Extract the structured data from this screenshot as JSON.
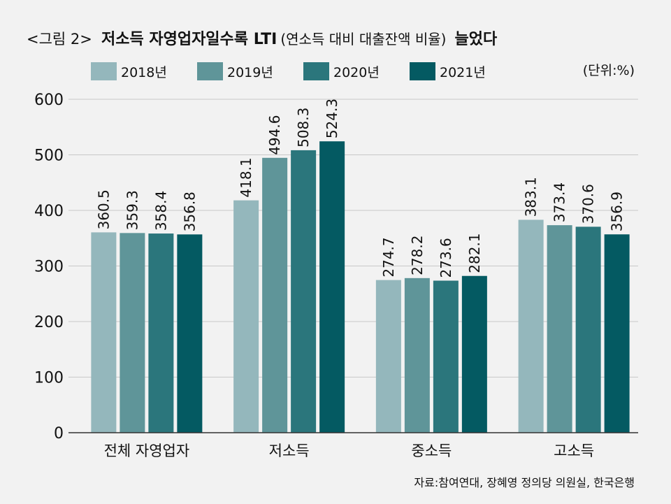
{
  "title": {
    "prefix": "<그림 2>",
    "main": "저소득 자영업자일수록 LTI",
    "paren": "(연소득 대비 대출잔액 비율)",
    "suffix": "늘었다"
  },
  "unit_label": "(단위:%)",
  "source": "자료:참여연대, 장혜영 정의당 의원실, 한국은행",
  "chart_data": {
    "type": "bar",
    "categories": [
      "전체 자영업자",
      "저소득",
      "중소득",
      "고소득"
    ],
    "series": [
      {
        "name": "2018년",
        "color": "#94b7bc",
        "values": [
          360.5,
          418.1,
          274.7,
          383.1
        ]
      },
      {
        "name": "2019년",
        "color": "#5f9599",
        "values": [
          359.3,
          494.6,
          278.2,
          373.4
        ]
      },
      {
        "name": "2020년",
        "color": "#2b767c",
        "values": [
          358.4,
          508.3,
          273.6,
          370.6
        ]
      },
      {
        "name": "2021년",
        "color": "#045a62",
        "values": [
          356.8,
          524.3,
          282.1,
          356.9
        ]
      }
    ],
    "yticks": [
      0,
      100,
      200,
      300,
      400,
      500,
      600
    ],
    "ylim": [
      0,
      600
    ],
    "grid": true,
    "legend_position": "top"
  }
}
